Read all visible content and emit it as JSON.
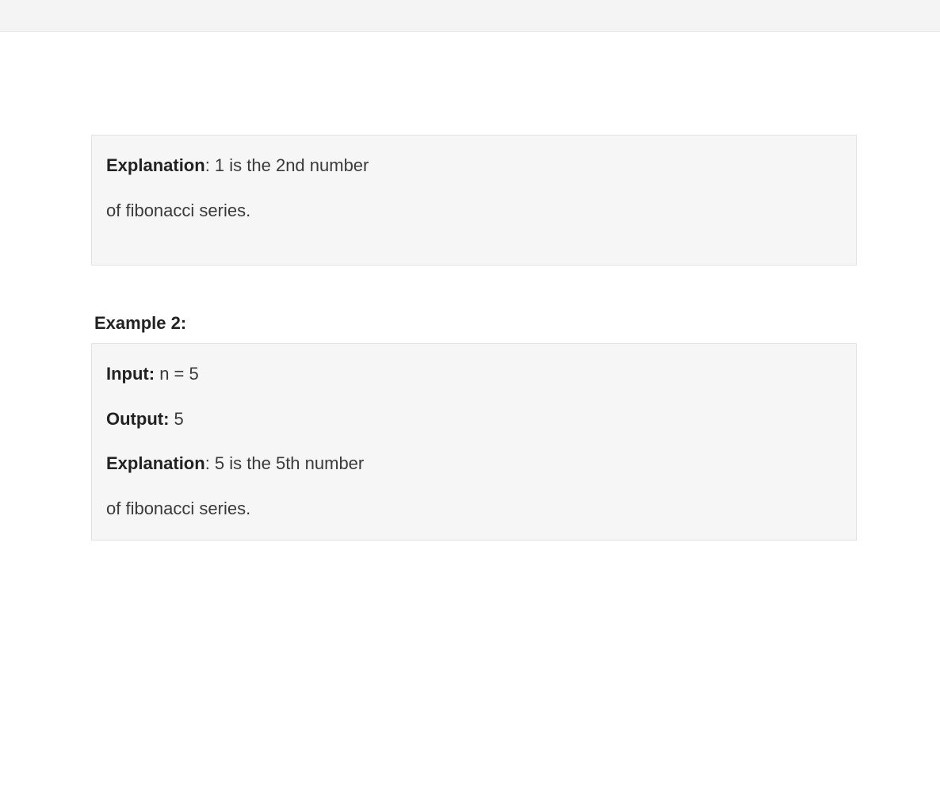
{
  "box1": {
    "explanation_label": "Explanation",
    "explanation_text": ": 1 is the 2nd number",
    "line2": "of fibonacci series."
  },
  "example2": {
    "heading": "Example 2:",
    "input_label": "Input:",
    "input_text": " n = 5",
    "output_label": "Output:",
    "output_text": " 5",
    "explanation_label": "Explanation",
    "explanation_text": ": 5 is the 5th number",
    "line2": "of fibonacci series."
  },
  "style": {
    "background_color": "#ffffff",
    "box_background": "#f6f6f6",
    "box_border": "#e3e3e3",
    "topbar_background": "#f4f4f4",
    "text_color": "#3a3a3a",
    "bold_color": "#222222",
    "font_size": 22
  }
}
